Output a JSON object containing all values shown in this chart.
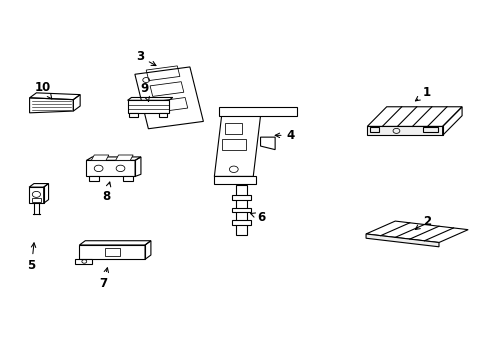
{
  "bg_color": "#ffffff",
  "line_color": "#000000",
  "lw": 0.8,
  "parts_info": {
    "1": [
      0.875,
      0.745,
      0.845,
      0.715
    ],
    "2": [
      0.875,
      0.385,
      0.845,
      0.355
    ],
    "3": [
      0.285,
      0.845,
      0.325,
      0.815
    ],
    "4": [
      0.595,
      0.625,
      0.555,
      0.625
    ],
    "5": [
      0.062,
      0.26,
      0.068,
      0.335
    ],
    "6": [
      0.535,
      0.395,
      0.505,
      0.41
    ],
    "7": [
      0.21,
      0.21,
      0.22,
      0.265
    ],
    "8": [
      0.215,
      0.455,
      0.225,
      0.505
    ],
    "9": [
      0.295,
      0.755,
      0.305,
      0.71
    ],
    "10": [
      0.085,
      0.76,
      0.105,
      0.725
    ]
  }
}
